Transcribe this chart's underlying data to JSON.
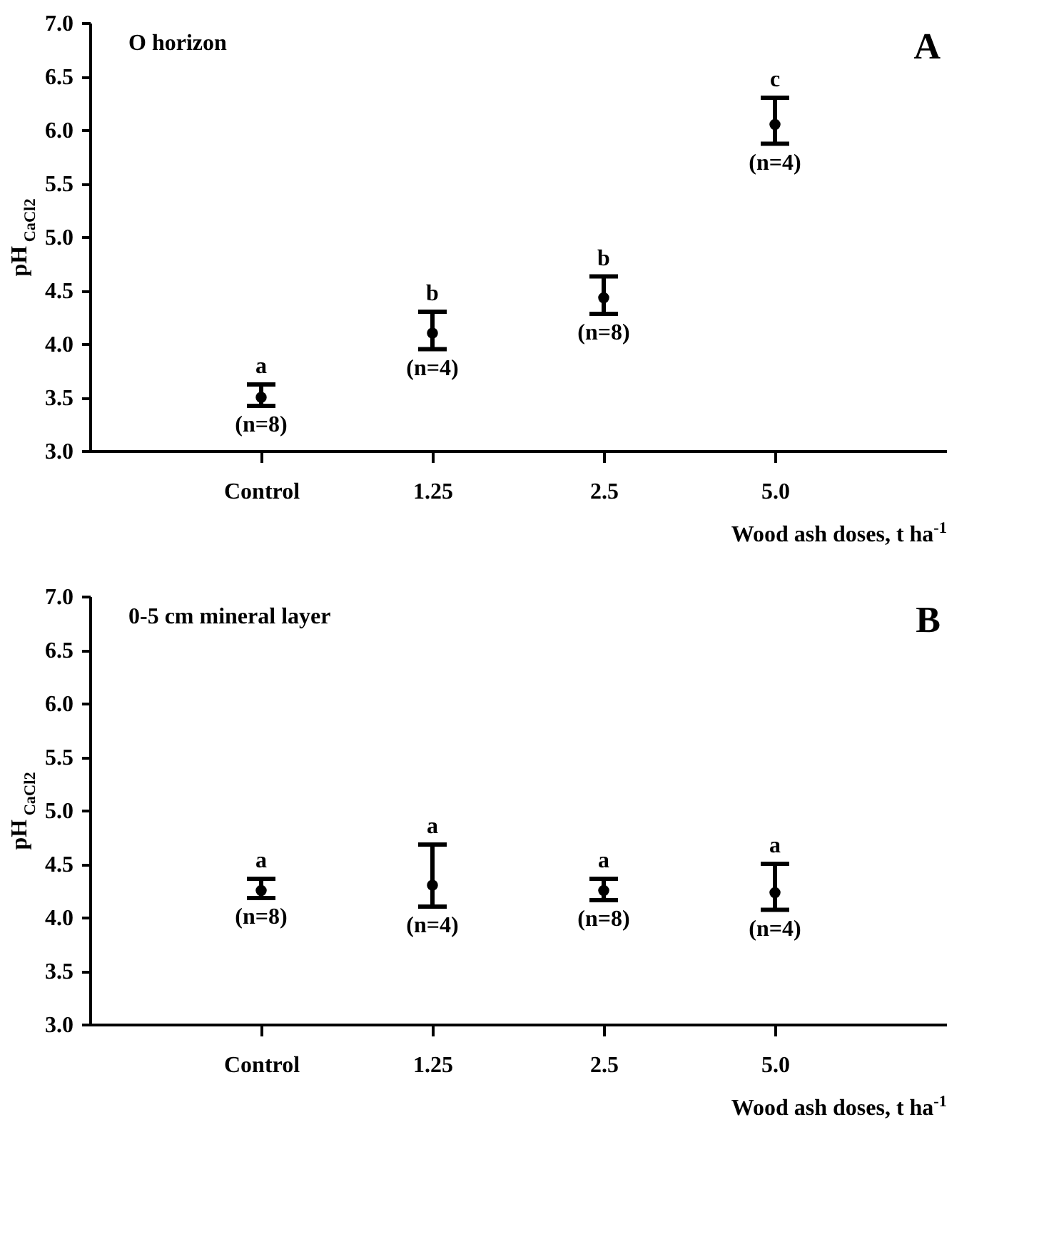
{
  "chart_data": [
    {
      "type": "scatter",
      "title": "O horizon",
      "xlabel": "Wood ash doses, t ha$^{-1}$",
      "ylabel": "pH$_{CaCl2}$",
      "categories": [
        "Control",
        "1.25",
        "2.5",
        "5.0"
      ],
      "values": [
        3.5,
        4.1,
        4.43,
        6.05
      ],
      "errors": [
        [
          3.42,
          3.62
        ],
        [
          3.95,
          4.3
        ],
        [
          4.28,
          4.63
        ],
        [
          5.87,
          6.3
        ]
      ],
      "color": "#000000",
      "marker": "circle",
      "ylim": [
        3.0,
        7.0
      ],
      "yticks": [
        {
          "value": 3,
          "label": "3.0"
        },
        {
          "value": 3.5,
          "label": "3.5"
        },
        {
          "value": 4,
          "label": "4.0"
        },
        {
          "value": 4.5,
          "label": "4.5"
        },
        {
          "value": 5,
          "label": "5.0"
        },
        {
          "value": 5.5,
          "label": "5.5"
        },
        {
          "value": 6,
          "label": "6.0"
        },
        {
          "value": 6.5,
          "label": "6.5"
        },
        {
          "value": 7,
          "label": "7.0"
        }
      ],
      "annotations": [
        "A",
        {
          "text": "a",
          "x": "Control",
          "y": 3.62
        },
        {
          "text": "b",
          "x": "1.25",
          "y": 4.3
        },
        {
          "text": "b",
          "x": "2.5",
          "y": 4.63
        },
        {
          "text": "c",
          "x": "5.0",
          "y": 6.3
        },
        {
          "text": "(n=8)",
          "x": "Control",
          "y": 3.42
        },
        {
          "text": "(n=4)",
          "x": "1.25",
          "y": 3.95
        },
        {
          "text": "(n=8)",
          "x": "2.5",
          "y": 4.28
        },
        {
          "text": "(n=4)",
          "x": "5.0",
          "y": 5.87
        }
      ]
    },
    {
      "type": "scatter",
      "title": "0-5 cm mineral layer",
      "xlabel": "Wood ash doses, t ha$^{-1}$",
      "ylabel": "pH$_{CaCl2}$",
      "categories": [
        "Control",
        "1.25",
        "2.5",
        "5.0"
      ],
      "values": [
        4.25,
        4.3,
        4.25,
        4.23
      ],
      "errors": [
        [
          4.18,
          4.36
        ],
        [
          4.1,
          4.68
        ],
        [
          4.16,
          4.36
        ],
        [
          4.07,
          4.5
        ]
      ],
      "color": "#000000",
      "marker": "circle",
      "ylim": [
        3.0,
        7.0
      ],
      "yticks": [
        {
          "value": 3,
          "label": "3.0"
        },
        {
          "value": 3.5,
          "label": "3.5"
        },
        {
          "value": 4,
          "label": "4.0"
        },
        {
          "value": 4.5,
          "label": "4.5"
        },
        {
          "value": 5,
          "label": "5.0"
        },
        {
          "value": 5.5,
          "label": "5.5"
        },
        {
          "value": 6,
          "label": "6.0"
        },
        {
          "value": 6.5,
          "label": "6.5"
        },
        {
          "value": 7,
          "label": "7.0"
        }
      ],
      "annotations": [
        "B",
        {
          "text": "a",
          "x": "Control",
          "y": 4.36
        },
        {
          "text": "a",
          "x": "1.25",
          "y": 4.68
        },
        {
          "text": "a",
          "x": "2.5",
          "y": 4.36
        },
        {
          "text": "a",
          "x": "5.0",
          "y": 4.5
        },
        {
          "text": "(n=8)",
          "x": "Control",
          "y": 4.18
        },
        {
          "text": "(n=4)",
          "x": "1.25",
          "y": 4.1
        },
        {
          "text": "(n=8)",
          "x": "2.5",
          "y": 4.16
        },
        {
          "text": "(n=4)",
          "x": "5.0",
          "y": 4.07
        }
      ]
    }
  ]
}
